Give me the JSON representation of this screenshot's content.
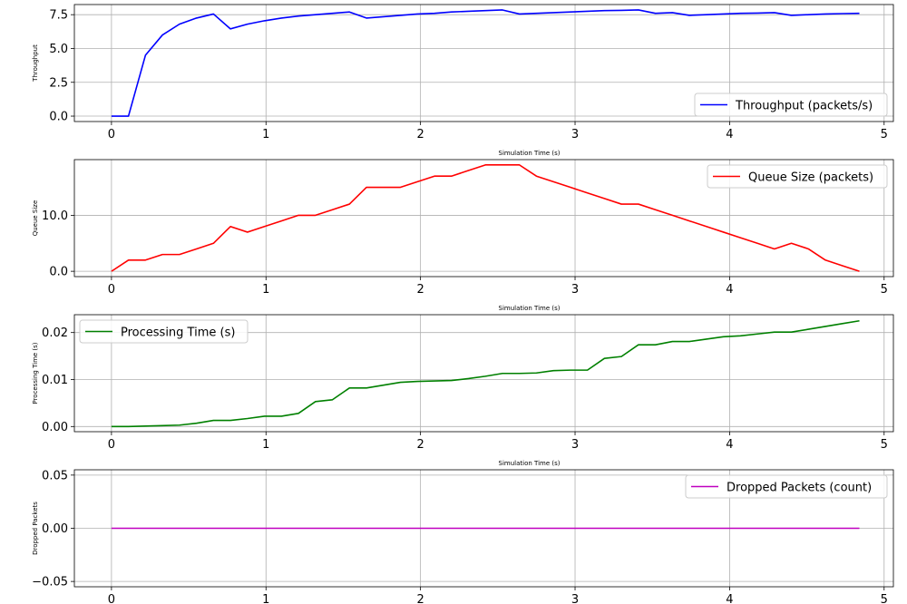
{
  "chart_data": [
    {
      "type": "line",
      "xlabel": "Simulation Time (s)",
      "ylabel": "Throughput",
      "xlim": [
        -0.24,
        5.06
      ],
      "ylim": [
        -0.4,
        8.25
      ],
      "xticks": [
        0,
        1,
        2,
        3,
        4,
        5
      ],
      "yticks": [
        0.0,
        2.5,
        5.0,
        7.5
      ],
      "grid": true,
      "legend_position": "lower right",
      "series": [
        {
          "name": "Throughput (packets/s)",
          "color": "#0000ff",
          "x": [
            0,
            0.11,
            0.22,
            0.33,
            0.44,
            0.55,
            0.66,
            0.77,
            0.88,
            0.99,
            1.1,
            1.21,
            1.32,
            1.43,
            1.54,
            1.65,
            1.76,
            1.87,
            1.98,
            2.09,
            2.2,
            2.31,
            2.42,
            2.53,
            2.64,
            2.75,
            2.86,
            2.97,
            3.08,
            3.19,
            3.3,
            3.41,
            3.52,
            3.63,
            3.74,
            3.85,
            3.96,
            4.07,
            4.18,
            4.29,
            4.4,
            4.51,
            4.62,
            4.73,
            4.84
          ],
          "y": [
            0.0,
            0.0,
            4.5,
            6.0,
            6.8,
            7.25,
            7.55,
            6.45,
            6.8,
            7.05,
            7.25,
            7.4,
            7.5,
            7.6,
            7.7,
            7.25,
            7.35,
            7.45,
            7.55,
            7.6,
            7.7,
            7.75,
            7.8,
            7.85,
            7.55,
            7.6,
            7.65,
            7.7,
            7.75,
            7.8,
            7.82,
            7.85,
            7.6,
            7.65,
            7.45,
            7.5,
            7.55,
            7.6,
            7.62,
            7.65,
            7.45,
            7.5,
            7.55,
            7.58,
            7.6
          ]
        }
      ]
    },
    {
      "type": "line",
      "xlabel": "Simulation Time (s)",
      "ylabel": "Queue Size",
      "xlim": [
        -0.24,
        5.06
      ],
      "ylim": [
        -0.95,
        19.95
      ],
      "xticks": [
        0,
        1,
        2,
        3,
        4,
        5
      ],
      "yticks": [
        0,
        10
      ],
      "grid": true,
      "legend_position": "upper right",
      "series": [
        {
          "name": "Queue Size (packets)",
          "color": "#ff0000",
          "x": [
            0,
            0.11,
            0.22,
            0.33,
            0.44,
            0.55,
            0.66,
            0.77,
            0.88,
            0.99,
            1.1,
            1.21,
            1.32,
            1.43,
            1.54,
            1.65,
            1.76,
            1.87,
            1.98,
            2.09,
            2.2,
            2.31,
            2.42,
            2.53,
            2.64,
            2.75,
            2.86,
            2.97,
            3.08,
            3.19,
            3.3,
            3.41,
            3.52,
            3.63,
            3.74,
            3.85,
            3.96,
            4.07,
            4.18,
            4.29,
            4.4,
            4.51,
            4.62,
            4.73,
            4.84
          ],
          "y": [
            0,
            2,
            2,
            3,
            3,
            4,
            5,
            8,
            7,
            8,
            9,
            10,
            10,
            11,
            12,
            15,
            15,
            15,
            16,
            17,
            17,
            18,
            19,
            19,
            19,
            17,
            16,
            15,
            14,
            13,
            12,
            12,
            11,
            10,
            9,
            8,
            7,
            6,
            5,
            4,
            5,
            4,
            2,
            1,
            0
          ]
        }
      ]
    },
    {
      "type": "line",
      "xlabel": "Simulation Time (s)",
      "ylabel": "Processing Time (s)",
      "xlim": [
        -0.24,
        5.06
      ],
      "ylim": [
        -0.0011,
        0.0238
      ],
      "xticks": [
        0,
        1,
        2,
        3,
        4,
        5
      ],
      "yticks": [
        0.0,
        0.01,
        0.02
      ],
      "ytick_labels": [
        "0.00",
        "0.01",
        "0.02"
      ],
      "grid": true,
      "legend_position": "upper left",
      "series": [
        {
          "name": "Processing Time (s)",
          "color": "#008000",
          "x": [
            0,
            0.11,
            0.22,
            0.33,
            0.44,
            0.55,
            0.66,
            0.77,
            0.88,
            0.99,
            1.1,
            1.21,
            1.32,
            1.43,
            1.54,
            1.65,
            1.76,
            1.87,
            1.98,
            2.09,
            2.2,
            2.31,
            2.42,
            2.53,
            2.64,
            2.75,
            2.86,
            2.97,
            3.08,
            3.19,
            3.3,
            3.41,
            3.52,
            3.63,
            3.74,
            3.85,
            3.96,
            4.07,
            4.18,
            4.29,
            4.4,
            4.51,
            4.62,
            4.73,
            4.84
          ],
          "y": [
            0.0,
            0.0,
            0.0001,
            0.0002,
            0.0003,
            0.0007,
            0.0013,
            0.0013,
            0.0017,
            0.0022,
            0.0022,
            0.0028,
            0.0053,
            0.0057,
            0.0082,
            0.0082,
            0.0088,
            0.0094,
            0.0096,
            0.0097,
            0.0098,
            0.0102,
            0.0107,
            0.0113,
            0.0113,
            0.0114,
            0.0119,
            0.012,
            0.012,
            0.0145,
            0.0149,
            0.0174,
            0.0174,
            0.0181,
            0.0181,
            0.0186,
            0.0191,
            0.0193,
            0.0197,
            0.0201,
            0.0201,
            0.0207,
            0.0213,
            0.0219,
            0.0225
          ]
        }
      ]
    },
    {
      "type": "line",
      "xlabel": "",
      "ylabel": "Dropped Packets",
      "xlim": [
        -0.24,
        5.06
      ],
      "ylim": [
        -0.055,
        0.055
      ],
      "xticks": [
        0,
        1,
        2,
        3,
        4,
        5
      ],
      "yticks": [
        -0.05,
        0.0,
        0.05
      ],
      "ytick_labels": [
        "−0.05",
        "0.00",
        "0.05"
      ],
      "grid": true,
      "legend_position": "upper right",
      "series": [
        {
          "name": "Dropped Packets (count)",
          "color": "#bf00bf",
          "x": [
            0,
            0.11,
            0.22,
            0.33,
            0.44,
            0.55,
            0.66,
            0.77,
            0.88,
            0.99,
            1.1,
            1.21,
            1.32,
            1.43,
            1.54,
            1.65,
            1.76,
            1.87,
            1.98,
            2.09,
            2.2,
            2.31,
            2.42,
            2.53,
            2.64,
            2.75,
            2.86,
            2.97,
            3.08,
            3.19,
            3.3,
            3.41,
            3.52,
            3.63,
            3.74,
            3.85,
            3.96,
            4.07,
            4.18,
            4.29,
            4.4,
            4.51,
            4.62,
            4.73,
            4.84
          ],
          "y": [
            0,
            0,
            0,
            0,
            0,
            0,
            0,
            0,
            0,
            0,
            0,
            0,
            0,
            0,
            0,
            0,
            0,
            0,
            0,
            0,
            0,
            0,
            0,
            0,
            0,
            0,
            0,
            0,
            0,
            0,
            0,
            0,
            0,
            0,
            0,
            0,
            0,
            0,
            0,
            0,
            0,
            0,
            0,
            0,
            0
          ]
        }
      ]
    }
  ]
}
